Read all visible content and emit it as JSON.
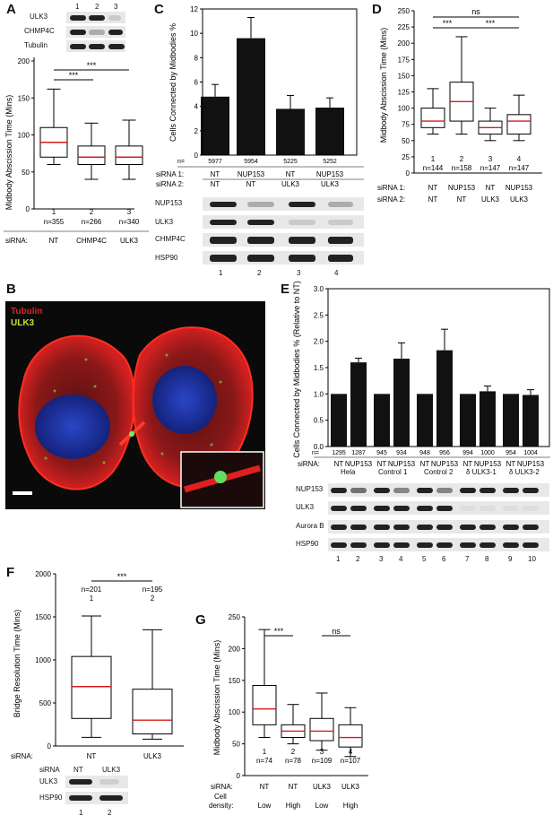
{
  "panels": {
    "A": {
      "label": "A",
      "lanes": [
        "1",
        "2",
        "3"
      ],
      "blots": [
        "ULK3",
        "CHMP4C",
        "Tubulin"
      ],
      "ylabel": "Midbody Abscission Time (Mins)",
      "yticks": [
        "0",
        "50",
        "100",
        "150",
        "200"
      ],
      "box_index": [
        "1",
        "2",
        "3"
      ],
      "n": [
        "n=355",
        "n=266",
        "n=340"
      ],
      "row_label": "siRNA:",
      "groups": [
        "NT",
        "CHMP4C",
        "ULK3"
      ],
      "sig": [
        "***",
        "***"
      ]
    },
    "C": {
      "label": "C",
      "ylabel": "Cells Connected by Midbodies %",
      "yticks": [
        "0",
        "2",
        "4",
        "6",
        "8",
        "10",
        "12"
      ],
      "n_prefix": "n=",
      "n": [
        "5977",
        "5954",
        "5225",
        "5252"
      ],
      "sirna1_label": "siRNA 1:",
      "sirna1": [
        "NT",
        "NUP153",
        "NT",
        "NUP153"
      ],
      "sirna2_label": "siRNA 2:",
      "sirna2": [
        "NT",
        "NT",
        "ULK3",
        "ULK3"
      ],
      "blots": [
        "NUP153",
        "ULK3",
        "CHMP4C",
        "HSP90"
      ],
      "lanes": [
        "1",
        "2",
        "3",
        "4"
      ]
    },
    "D": {
      "label": "D",
      "ylabel": "Midbody Abscission Time (Mins)",
      "yticks": [
        "0",
        "25",
        "50",
        "75",
        "100",
        "125",
        "150",
        "175",
        "200",
        "225",
        "250"
      ],
      "box_index": [
        "1",
        "2",
        "3",
        "4"
      ],
      "n": [
        "n=144",
        "n=158",
        "n=147",
        "n=147"
      ],
      "sirna1_label": "siRNA 1:",
      "sirna1": [
        "NT",
        "NUP153",
        "NT",
        "NUP153"
      ],
      "sirna2_label": "siRNA 2:",
      "sirna2": [
        "NT",
        "NT",
        "ULK3",
        "ULK3"
      ],
      "sig": [
        "ns",
        "***",
        "***"
      ]
    },
    "B": {
      "label": "B",
      "stain1": "Tubulin",
      "stain2": "ULK3"
    },
    "E": {
      "label": "E",
      "ylabel": "Cells Connected by Midbodies % (Relative to NT)",
      "yticks": [
        "0.0",
        "0.5",
        "1.0",
        "1.5",
        "2.0",
        "2.5",
        "3.0"
      ],
      "n_prefix": "n=",
      "n": [
        "1295",
        "1287",
        "945",
        "934",
        "948",
        "956",
        "994",
        "1000",
        "954",
        "1004"
      ],
      "sirna_label": "siRNA:",
      "sirna": [
        "NT",
        "NUP153",
        "NT",
        "NUP153",
        "NT",
        "NUP153",
        "NT",
        "NUP153",
        "NT",
        "NUP153"
      ],
      "lines": [
        "Hela",
        "Control 1",
        "Control 2",
        "δ ULK3-1",
        "δ ULK3-2"
      ],
      "blots": [
        "NUP153",
        "ULK3",
        "Aurora B",
        "HSP90"
      ],
      "lanes": [
        "1",
        "2",
        "3",
        "4",
        "5",
        "6",
        "7",
        "8",
        "9",
        "10"
      ]
    },
    "F": {
      "label": "F",
      "ylabel": "Bridge Resolution Time (Mins)",
      "yticks": [
        "0",
        "500",
        "1000",
        "1500",
        "2000"
      ],
      "n": [
        "n=201",
        "n=195"
      ],
      "box_index": [
        "1",
        "2"
      ],
      "row_label": "siRNA:",
      "groups": [
        "NT",
        "ULK3"
      ],
      "sig": [
        "***"
      ],
      "blot_header": "siRNA",
      "blot_groups": [
        "NT",
        "ULK3"
      ],
      "blots": [
        "ULK3",
        "HSP90"
      ],
      "lanes": [
        "1",
        "2"
      ]
    },
    "G": {
      "label": "G",
      "ylabel": "Midbody Abscission Time (Mins)",
      "yticks": [
        "0",
        "50",
        "100",
        "150",
        "200",
        "250"
      ],
      "box_index": [
        "1",
        "2",
        "3",
        "4"
      ],
      "n": [
        "n=74",
        "n=78",
        "n=109",
        "n=107"
      ],
      "sirna_label": "siRNA:",
      "sirna": [
        "NT",
        "NT",
        "ULK3",
        "ULK3"
      ],
      "density_label1": "Cell",
      "density_label2": "density:",
      "density": [
        "Low",
        "High",
        "Low",
        "High"
      ],
      "sig": [
        "***",
        "ns"
      ]
    }
  },
  "chart_data": [
    {
      "panel": "A",
      "type": "box",
      "ylim": [
        0,
        200
      ],
      "categories": [
        "NT",
        "CHMP4C",
        "ULK3"
      ],
      "boxes": [
        {
          "min": 60,
          "q1": 70,
          "median": 90,
          "q3": 110,
          "max": 162
        },
        {
          "min": 40,
          "q1": 60,
          "median": 70,
          "q3": 85,
          "max": 116
        },
        {
          "min": 40,
          "q1": 60,
          "median": 70,
          "q3": 85,
          "max": 120
        }
      ]
    },
    {
      "panel": "C",
      "type": "bar",
      "ylim": [
        0,
        12
      ],
      "categories": [
        "NT/NT",
        "NUP153/NT",
        "NT/ULK3",
        "NUP153/ULK3"
      ],
      "values": [
        4.8,
        9.6,
        3.8,
        3.9
      ],
      "errors": [
        1.0,
        1.7,
        1.1,
        0.8
      ]
    },
    {
      "panel": "D",
      "type": "box",
      "ylim": [
        0,
        250
      ],
      "categories": [
        "NT/NT",
        "NUP153/NT",
        "NT/ULK3",
        "NUP153/ULK3"
      ],
      "boxes": [
        {
          "min": 60,
          "q1": 70,
          "median": 80,
          "q3": 100,
          "max": 130
        },
        {
          "min": 60,
          "q1": 80,
          "median": 110,
          "q3": 140,
          "max": 210
        },
        {
          "min": 50,
          "q1": 60,
          "median": 70,
          "q3": 80,
          "max": 100
        },
        {
          "min": 50,
          "q1": 60,
          "median": 80,
          "q3": 90,
          "max": 120
        }
      ]
    },
    {
      "panel": "E",
      "type": "bar",
      "ylim": [
        0,
        3.0
      ],
      "categories": [
        "1",
        "2",
        "3",
        "4",
        "5",
        "6",
        "7",
        "8",
        "9",
        "10"
      ],
      "values": [
        1.0,
        1.6,
        1.0,
        1.67,
        1.0,
        1.83,
        1.0,
        1.05,
        1.0,
        0.98
      ],
      "errors": [
        0,
        0.08,
        0,
        0.3,
        0,
        0.4,
        0,
        0.1,
        0,
        0.1
      ]
    },
    {
      "panel": "F",
      "type": "box",
      "ylim": [
        0,
        2000
      ],
      "categories": [
        "NT",
        "ULK3"
      ],
      "boxes": [
        {
          "min": 100,
          "q1": 320,
          "median": 690,
          "q3": 1040,
          "max": 1510
        },
        {
          "min": 80,
          "q1": 140,
          "median": 300,
          "q3": 660,
          "max": 1350
        }
      ]
    },
    {
      "panel": "G",
      "type": "box",
      "ylim": [
        0,
        250
      ],
      "categories": [
        "NT Low",
        "NT High",
        "ULK3 Low",
        "ULK3 High"
      ],
      "boxes": [
        {
          "min": 60,
          "q1": 80,
          "median": 105,
          "q3": 142,
          "max": 230
        },
        {
          "min": 50,
          "q1": 60,
          "median": 70,
          "q3": 80,
          "max": 112
        },
        {
          "min": 40,
          "q1": 55,
          "median": 70,
          "q3": 90,
          "max": 130
        },
        {
          "min": 30,
          "q1": 45,
          "median": 60,
          "q3": 80,
          "max": 107
        }
      ]
    }
  ]
}
